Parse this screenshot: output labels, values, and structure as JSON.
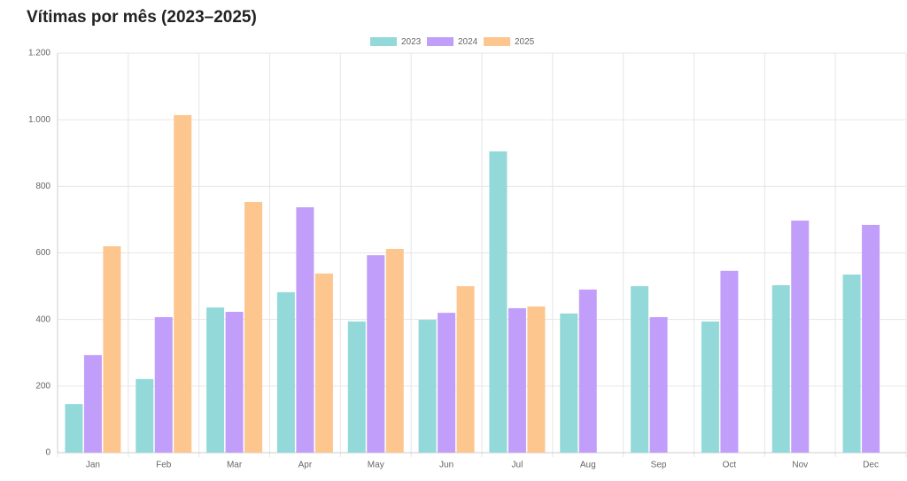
{
  "chart_data": {
    "type": "bar",
    "title": "Vítimas por mês (2023–2025)",
    "categories": [
      "Jan",
      "Feb",
      "Mar",
      "Apr",
      "May",
      "Jun",
      "Jul",
      "Aug",
      "Sep",
      "Oct",
      "Nov",
      "Dec"
    ],
    "series": [
      {
        "name": "2023",
        "color": "#93d9d9",
        "values": [
          146,
          221,
          436,
          482,
          394,
          399,
          905,
          418,
          500,
          394,
          503,
          535
        ]
      },
      {
        "name": "2024",
        "color": "#c09ef9",
        "values": [
          293,
          407,
          423,
          737,
          593,
          420,
          434,
          490,
          407,
          546,
          697,
          684
        ]
      },
      {
        "name": "2025",
        "color": "#fdc68f",
        "values": [
          620,
          1014,
          753,
          538,
          612,
          500,
          439,
          null,
          null,
          null,
          null,
          null
        ]
      }
    ],
    "ylim": [
      0,
      1200
    ],
    "yticks": [
      0,
      200,
      400,
      600,
      800,
      {
        "value": 1000,
        "label": "1.000"
      },
      {
        "value": 1200,
        "label": "1.200"
      }
    ],
    "grid": true,
    "legend": "top"
  }
}
